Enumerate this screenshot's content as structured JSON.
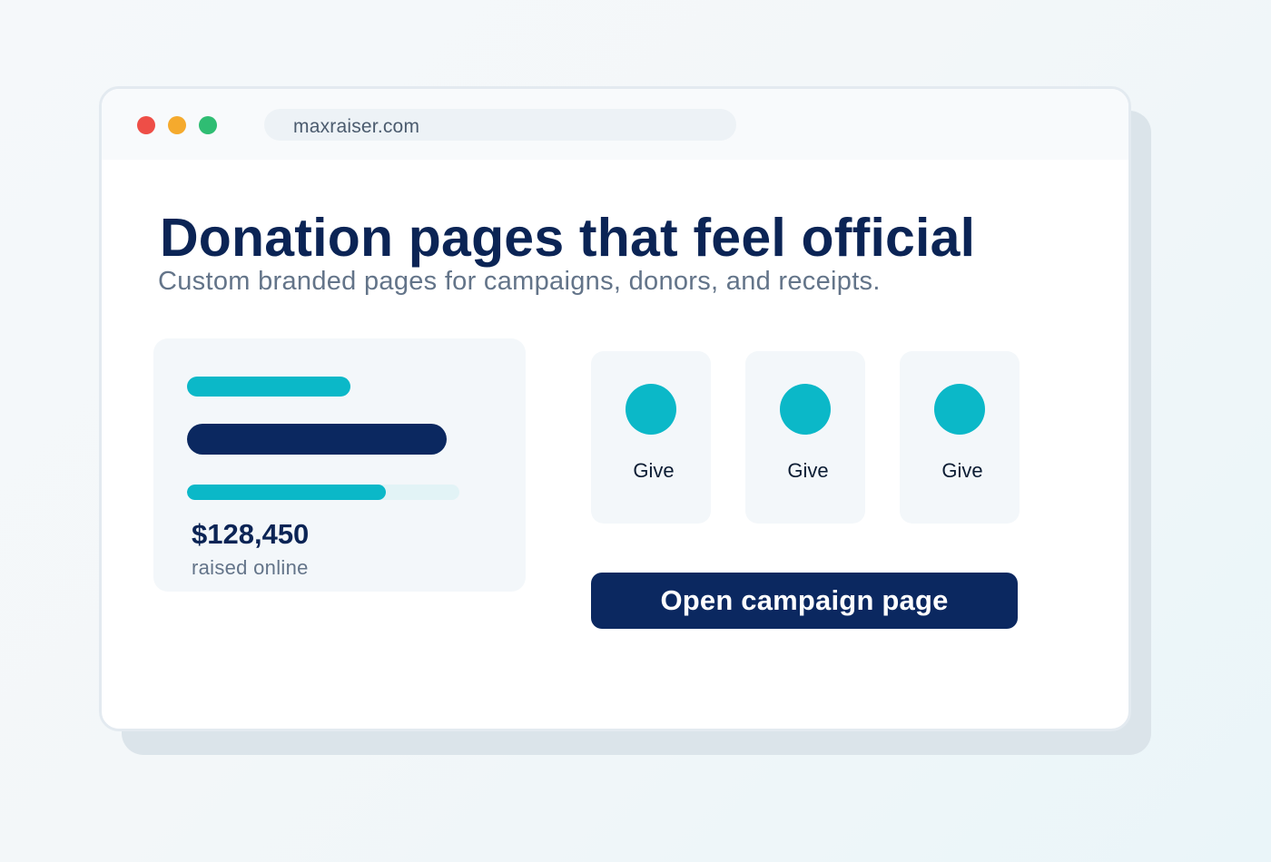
{
  "browser": {
    "url": "maxraiser.com",
    "traffic_lights": {
      "red": "#ee4e47",
      "yellow": "#f5aa2d",
      "green": "#2fbd73"
    }
  },
  "hero": {
    "title": "Donation pages that feel official",
    "subtitle": "Custom branded pages for campaigns, donors, and receipts."
  },
  "stats": {
    "amount": "$128,450",
    "caption": "raised online",
    "progress_fraction": 0.73
  },
  "give_options": [
    {
      "label": "Give",
      "icon": "donation-circle-icon"
    },
    {
      "label": "Give",
      "icon": "donation-circle-icon"
    },
    {
      "label": "Give",
      "icon": "donation-circle-icon"
    }
  ],
  "cta": {
    "label": "Open campaign page"
  },
  "colors": {
    "brand_navy": "#0b2860",
    "accent_teal": "#0bb8c8",
    "muted_text": "#637489"
  }
}
